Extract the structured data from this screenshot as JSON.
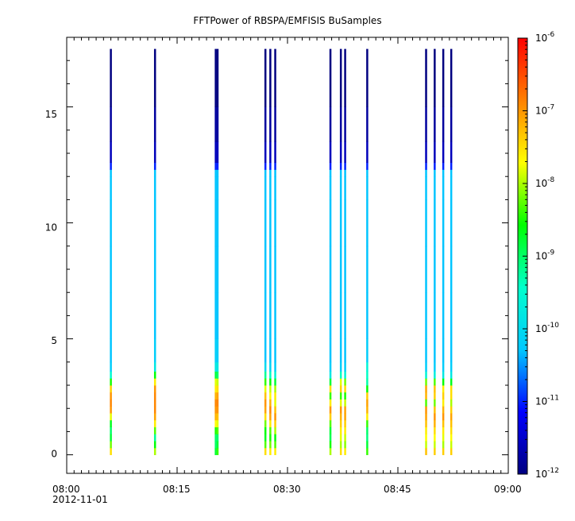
{
  "chart_data": {
    "type": "heatmap",
    "title": "FFTPower of RBSPA/EMFISIS  BuSamples",
    "xlabel": "",
    "ylabel": "",
    "x_range": [
      "08:00",
      "09:00"
    ],
    "x_ticks": [
      "08:00",
      "08:15",
      "08:30",
      "08:45",
      "09:00"
    ],
    "x_date_label": "2012-11-01",
    "ylim": [
      -0.8,
      18.0
    ],
    "y_ticks": [
      "0",
      "5",
      "10",
      "15"
    ],
    "zscale": "log",
    "zlim": [
      1e-12,
      1e-06
    ],
    "colorbar_ticks": [
      {
        "base": "10",
        "exp": "-12"
      },
      {
        "base": "10",
        "exp": "-11"
      },
      {
        "base": "10",
        "exp": "-10"
      },
      {
        "base": "10",
        "exp": "-9"
      },
      {
        "base": "10",
        "exp": "-8"
      },
      {
        "base": "10",
        "exp": "-7"
      },
      {
        "base": "10",
        "exp": "-6"
      }
    ],
    "colors": {
      "colormap": [
        "#000080",
        "#0000ff",
        "#00c8ff",
        "#00ffcc",
        "#00ff00",
        "#ffff00",
        "#ff8000",
        "#ff0000"
      ],
      "background": "#ffffff"
    },
    "sample_times": [
      "08:06",
      "08:12",
      "08:20:15",
      "08:20:30",
      "08:27",
      "08:27:40",
      "08:28:20",
      "08:35:50",
      "08:37:15",
      "08:37:50",
      "08:40:50",
      "08:48:50",
      "08:50",
      "08:51:10",
      "08:52:15"
    ],
    "profile_frequency_bins": [
      0,
      0.3,
      0.6,
      0.9,
      1.2,
      1.5,
      1.8,
      2.1,
      2.4,
      2.7,
      3.0,
      3.3,
      3.6,
      4.0,
      5.0,
      7.0,
      9.0,
      11.0,
      12.0,
      12.3,
      12.6,
      13.5,
      15.0,
      17.5
    ],
    "spectral_profiles": [
      {
        "log_power": [
          -7.5,
          -8.2,
          -8.8,
          -9.0,
          -8.7,
          -7.8,
          -7.0,
          -6.9,
          -7.0,
          -7.4,
          -8.5,
          -9.5,
          -10.2,
          -10.3,
          -10.3,
          -10.3,
          -10.3,
          -10.3,
          -10.3,
          -11.0,
          -11.6,
          -11.8,
          -12.0,
          -12.0
        ]
      },
      {
        "log_power": [
          -8.0,
          -8.6,
          -9.2,
          -8.3,
          -7.6,
          -7.1,
          -6.9,
          -6.9,
          -6.9,
          -7.0,
          -7.6,
          -8.6,
          -9.8,
          -10.2,
          -10.3,
          -10.3,
          -10.3,
          -10.3,
          -10.3,
          -11.0,
          -11.6,
          -11.8,
          -12.0,
          -12.0
        ]
      },
      {
        "log_power": [
          -8.8,
          -9.0,
          -9.0,
          -8.5,
          -7.7,
          -7.2,
          -7.0,
          -6.9,
          -7.2,
          -7.6,
          -7.8,
          -8.8,
          -9.8,
          -10.2,
          -10.3,
          -10.3,
          -10.3,
          -10.3,
          -10.3,
          -11.0,
          -11.6,
          -11.8,
          -12.0,
          -12.0
        ]
      },
      {
        "log_power": [
          -8.4,
          -8.8,
          -9.0,
          -8.3,
          -7.8,
          -7.3,
          -7.0,
          -6.9,
          -7.1,
          -7.5,
          -7.9,
          -9.0,
          -9.8,
          -10.2,
          -10.3,
          -10.3,
          -10.3,
          -10.3,
          -10.3,
          -11.0,
          -11.6,
          -11.8,
          -12.0,
          -12.0
        ]
      },
      {
        "log_power": [
          -7.5,
          -8.3,
          -8.7,
          -8.6,
          -8.2,
          -7.5,
          -7.1,
          -7.0,
          -7.3,
          -7.8,
          -8.4,
          -9.2,
          -10.0,
          -10.3,
          -10.3,
          -10.3,
          -10.3,
          -10.3,
          -10.3,
          -11.0,
          -11.6,
          -11.8,
          -12.0,
          -12.0
        ]
      },
      {
        "log_power": [
          -7.6,
          -8.2,
          -8.5,
          -8.3,
          -7.6,
          -7.1,
          -6.9,
          -7.2,
          -7.7,
          -7.9,
          -8.6,
          -9.4,
          -10.1,
          -10.3,
          -10.3,
          -10.3,
          -10.3,
          -10.3,
          -10.3,
          -11.0,
          -11.6,
          -11.8,
          -12.0,
          -12.0
        ]
      },
      {
        "log_power": [
          -7.6,
          -8.3,
          -8.6,
          -8.0,
          -7.4,
          -7.0,
          -7.3,
          -7.8,
          -7.6,
          -8.0,
          -8.8,
          -9.6,
          -10.2,
          -10.3,
          -10.3,
          -10.3,
          -10.3,
          -10.3,
          -10.3,
          -11.0,
          -11.6,
          -11.8,
          -12.0,
          -12.0
        ]
      },
      {
        "log_power": [
          -8.0,
          -8.5,
          -8.9,
          -8.8,
          -8.3,
          -7.4,
          -7.0,
          -7.6,
          -8.4,
          -7.5,
          -8.8,
          -9.8,
          -10.2,
          -10.3,
          -10.3,
          -10.3,
          -10.3,
          -10.3,
          -10.3,
          -11.0,
          -11.6,
          -11.8,
          -12.0,
          -12.0
        ]
      },
      {
        "log_power": [
          -7.5,
          -8.0,
          -7.8,
          -7.6,
          -7.4,
          -7.2,
          -7.0,
          -7.8,
          -8.4,
          -7.4,
          -7.8,
          -9.4,
          -10.2,
          -10.3,
          -10.3,
          -10.3,
          -10.3,
          -10.3,
          -10.3,
          -11.0,
          -11.6,
          -11.8,
          -12.0,
          -12.0
        ]
      },
      {
        "log_power": [
          -7.6,
          -8.1,
          -7.9,
          -7.6,
          -7.4,
          -7.1,
          -7.1,
          -7.9,
          -8.5,
          -7.5,
          -8.2,
          -9.6,
          -10.2,
          -10.3,
          -10.3,
          -10.3,
          -10.3,
          -10.3,
          -10.3,
          -11.0,
          -11.6,
          -11.8,
          -12.0,
          -12.0
        ]
      },
      {
        "log_power": [
          -8.4,
          -8.8,
          -9.1,
          -9.0,
          -8.4,
          -7.6,
          -7.2,
          -7.1,
          -7.4,
          -8.6,
          -9.3,
          -9.4,
          -9.6,
          -10.2,
          -10.3,
          -10.3,
          -10.3,
          -10.3,
          -10.3,
          -11.0,
          -11.6,
          -11.8,
          -12.0,
          -12.0
        ]
      },
      {
        "log_power": [
          -7.3,
          -7.9,
          -7.7,
          -7.6,
          -7.3,
          -7.1,
          -7.0,
          -8.3,
          -7.2,
          -7.1,
          -8.2,
          -9.6,
          -10.2,
          -10.3,
          -10.3,
          -10.3,
          -10.3,
          -10.3,
          -10.3,
          -11.0,
          -11.6,
          -11.8,
          -12.0,
          -12.0
        ]
      },
      {
        "log_power": [
          -7.4,
          -7.9,
          -7.7,
          -7.5,
          -7.2,
          -7.0,
          -7.3,
          -8.2,
          -7.4,
          -7.3,
          -8.3,
          -9.7,
          -10.2,
          -10.3,
          -10.3,
          -10.3,
          -10.3,
          -10.3,
          -10.3,
          -11.0,
          -11.6,
          -11.8,
          -12.0,
          -12.0
        ]
      },
      {
        "log_power": [
          -7.4,
          -8.0,
          -7.8,
          -7.6,
          -7.3,
          -7.0,
          -7.2,
          -7.6,
          -7.4,
          -7.6,
          -8.6,
          -9.8,
          -10.2,
          -10.3,
          -10.3,
          -10.3,
          -10.3,
          -10.3,
          -10.3,
          -11.0,
          -11.6,
          -11.8,
          -12.0,
          -12.0
        ]
      },
      {
        "log_power": [
          -7.4,
          -7.9,
          -7.7,
          -7.5,
          -7.3,
          -7.1,
          -7.4,
          -8.0,
          -7.5,
          -7.5,
          -8.7,
          -9.8,
          -10.2,
          -10.3,
          -10.3,
          -10.3,
          -10.3,
          -10.3,
          -10.3,
          -11.0,
          -11.6,
          -11.8,
          -12.0,
          -12.0
        ]
      }
    ]
  }
}
